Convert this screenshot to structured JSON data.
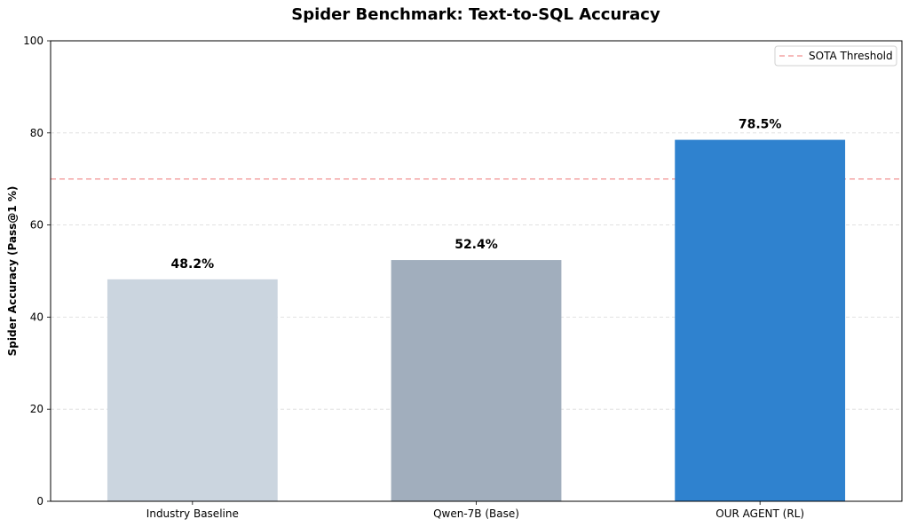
{
  "chart_data": {
    "type": "bar",
    "title": "Spider Benchmark: Text-to-SQL Accuracy",
    "xlabel": "",
    "ylabel": "Spider Accuracy (Pass@1 %)",
    "categories": [
      "Industry Baseline",
      "Qwen-7B (Base)",
      "OUR AGENT (RL)"
    ],
    "values": [
      48.2,
      52.4,
      78.5
    ],
    "data_labels": [
      "48.2%",
      "52.4%",
      "78.5%"
    ],
    "bar_colors": [
      "#cbd5df",
      "#a1aebd",
      "#2f82cf"
    ],
    "ylim": [
      0,
      100
    ],
    "yticks": [
      0,
      20,
      40,
      60,
      80,
      100
    ],
    "grid": "y-dashed",
    "reference_line": {
      "label": "SOTA Threshold",
      "value": 70,
      "color": "#f4a3a3",
      "style": "dashed"
    },
    "legend": {
      "position": "top-right",
      "entries": [
        "SOTA Threshold"
      ]
    }
  }
}
